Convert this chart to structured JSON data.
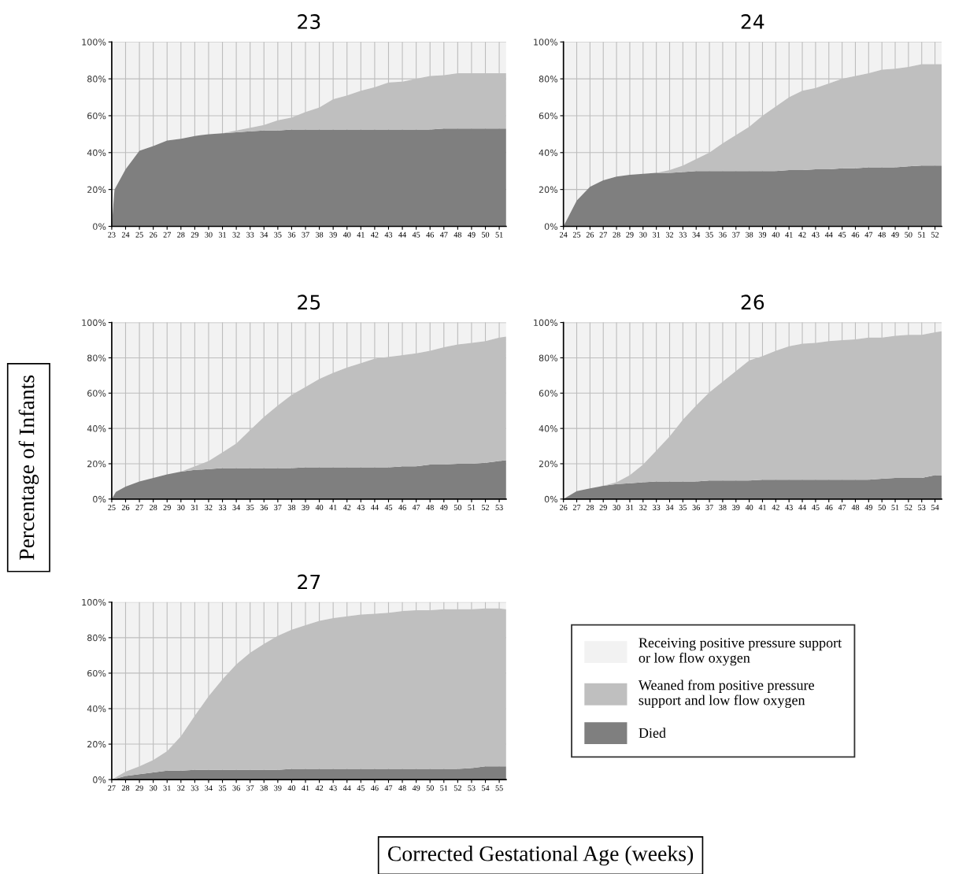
{
  "chart_data": [
    {
      "type": "area",
      "stacked": true,
      "title": "23",
      "grid": true,
      "legend": false,
      "x": [
        23,
        23.2,
        24,
        25,
        26,
        27,
        28,
        29,
        30,
        31,
        32,
        33,
        34,
        35,
        36,
        37,
        38,
        39,
        40,
        41,
        42,
        43,
        44,
        45,
        46,
        47,
        48,
        49,
        50,
        51,
        51.5
      ],
      "xlim": [
        23,
        51.5
      ],
      "xticks": [
        23,
        24,
        25,
        26,
        27,
        28,
        29,
        30,
        31,
        32,
        33,
        34,
        35,
        36,
        37,
        38,
        39,
        40,
        41,
        42,
        43,
        44,
        45,
        46,
        47,
        48,
        49,
        50,
        51
      ],
      "ylim": [
        0,
        100
      ],
      "yticks": [
        {
          "value": 0,
          "label": "0%"
        },
        {
          "value": 20,
          "label": "20%"
        },
        {
          "value": 40,
          "label": "40%"
        },
        {
          "value": 60,
          "label": "60%"
        },
        {
          "value": 80,
          "label": "80%"
        },
        {
          "value": 100,
          "label": "100%"
        }
      ],
      "series": [
        {
          "color": "#7f7f7f",
          "values": [
            0,
            20,
            31,
            41,
            43.5,
            46.5,
            47.5,
            49,
            50,
            50.5,
            51,
            51.5,
            52,
            52,
            52.5,
            52.5,
            52.5,
            52.5,
            52.5,
            52.5,
            52.5,
            52.5,
            52.5,
            52.5,
            52.5,
            53,
            53,
            53,
            53,
            53,
            53
          ]
        },
        {
          "color": "#bfbfbf",
          "values": [
            0,
            0,
            0,
            0,
            0,
            0,
            0,
            0,
            0,
            0,
            1,
            2,
            3,
            5.5,
            6.5,
            9.5,
            12,
            16.5,
            18.5,
            21,
            23,
            25.5,
            26,
            27.5,
            29,
            29,
            30,
            30,
            30,
            30,
            30
          ]
        },
        {
          "color": "#f2f2f2",
          "values": [
            100,
            80,
            69,
            59,
            56.5,
            53.5,
            52.5,
            51,
            50,
            49.5,
            48,
            46.5,
            45,
            42.5,
            41,
            38,
            35.5,
            31,
            29,
            26.5,
            24.5,
            22,
            21.5,
            20,
            18.5,
            18,
            17,
            17,
            17,
            17,
            17
          ]
        }
      ]
    },
    {
      "type": "area",
      "stacked": true,
      "title": "24",
      "grid": true,
      "legend": false,
      "x": [
        24,
        25,
        26,
        27,
        28,
        29,
        30,
        31,
        32,
        33,
        34,
        35,
        36,
        37,
        38,
        39,
        40,
        41,
        42,
        43,
        44,
        45,
        46,
        47,
        48,
        49,
        50,
        51,
        52,
        52.5
      ],
      "xlim": [
        24,
        52.5
      ],
      "xticks": [
        24,
        25,
        26,
        27,
        28,
        29,
        30,
        31,
        32,
        33,
        34,
        35,
        36,
        37,
        38,
        39,
        40,
        41,
        42,
        43,
        44,
        45,
        46,
        47,
        48,
        49,
        50,
        51,
        52
      ],
      "ylim": [
        0,
        100
      ],
      "yticks": [
        {
          "value": 0,
          "label": "0%"
        },
        {
          "value": 20,
          "label": "20%"
        },
        {
          "value": 40,
          "label": "40%"
        },
        {
          "value": 60,
          "label": "60%"
        },
        {
          "value": 80,
          "label": "80%"
        },
        {
          "value": 100,
          "label": "100%"
        }
      ],
      "series": [
        {
          "color": "#7f7f7f",
          "values": [
            0,
            14,
            21.5,
            25,
            27,
            28,
            28.5,
            29,
            29,
            29.5,
            30,
            30,
            30,
            30,
            30,
            30,
            30,
            30.5,
            30.5,
            31,
            31,
            31.5,
            31.5,
            32,
            32,
            32,
            32.5,
            33,
            33,
            33
          ]
        },
        {
          "color": "#bfbfbf",
          "values": [
            0,
            0,
            0,
            0,
            0,
            0,
            0,
            0,
            1.5,
            3.5,
            6.5,
            10,
            15,
            19.5,
            24,
            30,
            35,
            39.5,
            43,
            44,
            46.5,
            48.5,
            50,
            51,
            53,
            53.5,
            54,
            55,
            55,
            55
          ]
        },
        {
          "color": "#f2f2f2",
          "values": [
            100,
            86,
            78.5,
            75,
            73,
            72,
            71.5,
            71,
            69.5,
            67,
            63.5,
            60,
            55,
            50.5,
            46,
            40,
            35,
            30,
            26.5,
            25,
            22.5,
            20,
            18.5,
            17,
            15,
            14.5,
            13.5,
            12,
            12,
            12
          ]
        }
      ]
    },
    {
      "type": "area",
      "stacked": true,
      "title": "25",
      "grid": true,
      "legend": false,
      "ylabel": "Percentage of Infants",
      "x": [
        25,
        25.3,
        26,
        27,
        28,
        29,
        30,
        31,
        32,
        33,
        34,
        35,
        36,
        37,
        38,
        39,
        40,
        41,
        42,
        43,
        44,
        45,
        46,
        47,
        48,
        49,
        50,
        51,
        52,
        53,
        53.5
      ],
      "xlim": [
        25,
        53.5
      ],
      "xticks": [
        25,
        26,
        27,
        28,
        29,
        30,
        31,
        32,
        33,
        34,
        35,
        36,
        37,
        38,
        39,
        40,
        41,
        42,
        43,
        44,
        45,
        46,
        47,
        48,
        49,
        50,
        51,
        52,
        53
      ],
      "ylim": [
        0,
        100
      ],
      "yticks": [
        {
          "value": 0,
          "label": "0%"
        },
        {
          "value": 20,
          "label": "20%"
        },
        {
          "value": 40,
          "label": "40%"
        },
        {
          "value": 60,
          "label": "60%"
        },
        {
          "value": 80,
          "label": "80%"
        },
        {
          "value": 100,
          "label": "100%"
        }
      ],
      "series": [
        {
          "color": "#7f7f7f",
          "values": [
            0,
            4,
            7,
            10,
            12,
            14,
            15.5,
            16.5,
            17,
            17.5,
            17.5,
            17.5,
            17.5,
            17.5,
            17.5,
            18,
            18,
            18,
            18,
            18,
            18,
            18,
            18.5,
            18.5,
            19.5,
            19.5,
            20,
            20,
            20.5,
            21.5,
            22
          ]
        },
        {
          "color": "#bfbfbf",
          "values": [
            0,
            0,
            0,
            0,
            0,
            0,
            0,
            2,
            4.5,
            9,
            14,
            21.5,
            29,
            35.5,
            41.5,
            45.5,
            50,
            53.5,
            56.5,
            59,
            61.5,
            62.5,
            63,
            64,
            64.5,
            66.5,
            67.5,
            68.5,
            69,
            70,
            70
          ]
        },
        {
          "color": "#f2f2f2",
          "values": [
            100,
            96,
            93,
            90,
            88,
            86,
            84.5,
            81.5,
            78.5,
            73.5,
            68.5,
            61,
            53.5,
            47,
            41,
            36.5,
            32,
            28.5,
            25.5,
            23,
            20.5,
            19.5,
            18.5,
            17.5,
            16,
            14,
            12.5,
            11.5,
            10.5,
            8.5,
            8
          ]
        }
      ]
    },
    {
      "type": "area",
      "stacked": true,
      "title": "26",
      "grid": true,
      "legend": false,
      "x": [
        26,
        27,
        28,
        29,
        30,
        31,
        32,
        33,
        34,
        35,
        36,
        37,
        38,
        39,
        40,
        41,
        42,
        43,
        44,
        45,
        46,
        47,
        48,
        49,
        50,
        51,
        52,
        53,
        54,
        54.5
      ],
      "xlim": [
        26,
        54.5
      ],
      "xticks": [
        26,
        27,
        28,
        29,
        30,
        31,
        32,
        33,
        34,
        35,
        36,
        37,
        38,
        39,
        40,
        41,
        42,
        43,
        44,
        45,
        46,
        47,
        48,
        49,
        50,
        51,
        52,
        53,
        54
      ],
      "ylim": [
        0,
        100
      ],
      "yticks": [
        {
          "value": 0,
          "label": "0%"
        },
        {
          "value": 20,
          "label": "20%"
        },
        {
          "value": 40,
          "label": "40%"
        },
        {
          "value": 60,
          "label": "60%"
        },
        {
          "value": 80,
          "label": "80%"
        },
        {
          "value": 100,
          "label": "100%"
        }
      ],
      "series": [
        {
          "color": "#7f7f7f",
          "values": [
            0,
            4.5,
            6,
            7.5,
            8.5,
            9,
            9.5,
            10,
            10,
            10,
            10,
            10.5,
            10.5,
            10.5,
            10.5,
            11,
            11,
            11,
            11,
            11,
            11,
            11,
            11,
            11,
            11.5,
            12,
            12,
            12,
            13.5,
            13.5
          ]
        },
        {
          "color": "#bfbfbf",
          "values": [
            0,
            0,
            0,
            0,
            1,
            4.5,
            10,
            17.5,
            25.5,
            35,
            43,
            50,
            56,
            62,
            68,
            70,
            73,
            75.5,
            77,
            77.5,
            78.5,
            79,
            79.5,
            80.5,
            80,
            80.5,
            81,
            81,
            81,
            81.5
          ]
        },
        {
          "color": "#f2f2f2",
          "values": [
            100,
            95.5,
            94,
            92.5,
            90.5,
            86.5,
            80.5,
            72.5,
            64.5,
            55,
            46.5,
            39.5,
            33.5,
            27.5,
            21.5,
            19,
            16,
            13.5,
            12,
            11.5,
            10.5,
            10,
            9.5,
            8.5,
            8.5,
            7.5,
            7,
            7,
            5.5,
            5
          ]
        }
      ]
    },
    {
      "type": "area",
      "stacked": true,
      "title": "27",
      "grid": true,
      "legend": "right",
      "xlabel": "Corrected Gestational Age (weeks)",
      "x": [
        27,
        28,
        29,
        30,
        31,
        32,
        33,
        34,
        35,
        36,
        37,
        38,
        39,
        40,
        41,
        42,
        43,
        44,
        45,
        46,
        47,
        48,
        49,
        50,
        51,
        52,
        53,
        54,
        55,
        55.5
      ],
      "xlim": [
        27,
        55.5
      ],
      "xticks": [
        27,
        28,
        29,
        30,
        31,
        32,
        33,
        34,
        35,
        36,
        37,
        38,
        39,
        40,
        41,
        42,
        43,
        44,
        45,
        46,
        47,
        48,
        49,
        50,
        51,
        52,
        53,
        54,
        55
      ],
      "ylim": [
        0,
        100
      ],
      "yticks": [
        {
          "value": 0,
          "label": "0%"
        },
        {
          "value": 20,
          "label": "20%"
        },
        {
          "value": 40,
          "label": "40%"
        },
        {
          "value": 60,
          "label": "60%"
        },
        {
          "value": 80,
          "label": "80%"
        },
        {
          "value": 100,
          "label": "100%"
        }
      ],
      "series": [
        {
          "name": "Died",
          "color": "#7f7f7f",
          "values": [
            0,
            2,
            3,
            4,
            5,
            5,
            5.5,
            5.5,
            5.5,
            5.5,
            5.5,
            5.5,
            5.5,
            6,
            6,
            6,
            6,
            6,
            6,
            6,
            6,
            6,
            6,
            6,
            6,
            6,
            6.5,
            7.5,
            7.5,
            7.5
          ]
        },
        {
          "name": "Weaned from positive pressure support and low flow oxygen",
          "color": "#bfbfbf",
          "values": [
            0,
            2.5,
            4.5,
            7,
            11,
            19.5,
            30.5,
            41.5,
            51,
            59.5,
            66,
            71,
            75.5,
            78.5,
            81,
            83.5,
            85,
            86,
            87,
            87.5,
            88,
            89,
            89.5,
            89.5,
            90,
            90,
            89.5,
            89,
            89,
            88.5
          ]
        },
        {
          "name": "Receiving positive pressure support or low flow oxygen",
          "color": "#f2f2f2",
          "values": [
            100,
            95.5,
            92.5,
            89,
            84,
            75.5,
            64,
            53,
            43.5,
            35,
            28.5,
            23.5,
            19,
            15.5,
            13,
            10.5,
            9,
            8,
            7,
            6.5,
            6,
            5,
            4.5,
            4.5,
            4,
            4,
            4,
            3.5,
            3.5,
            4
          ]
        }
      ]
    }
  ]
}
